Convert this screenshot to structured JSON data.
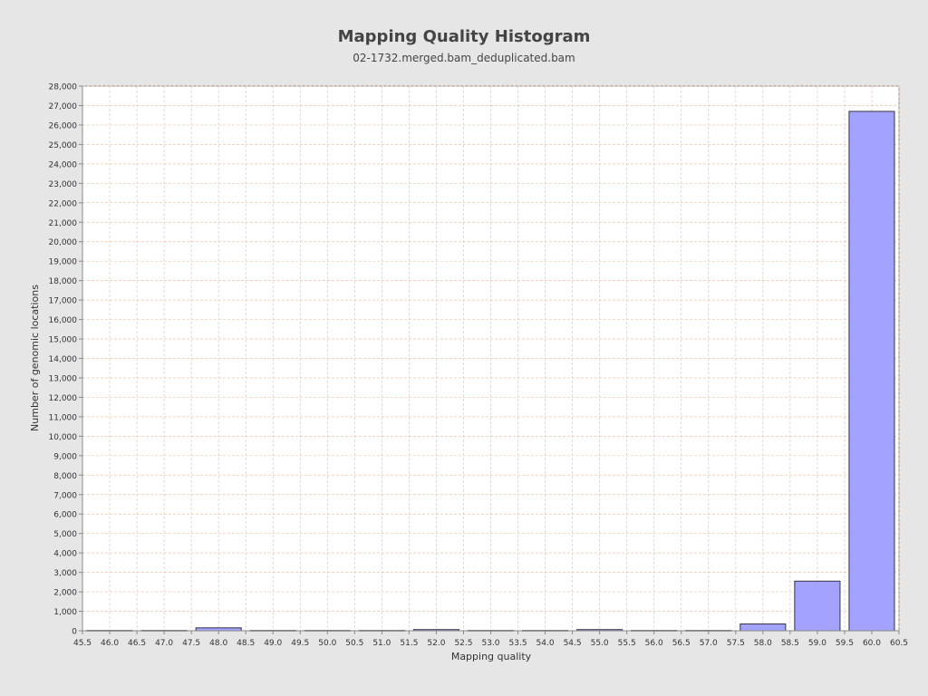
{
  "chart_data": {
    "type": "bar",
    "title": "Mapping Quality Histogram",
    "subtitle": "02-1732.merged.bam_deduplicated.bam",
    "xlabel": "Mapping quality",
    "ylabel": "Number of genomic locations",
    "xlim": [
      45.5,
      60.5
    ],
    "ylim": [
      0,
      28000
    ],
    "grid": true,
    "bar_width": 1.0,
    "x": [
      46.0,
      47.0,
      48.0,
      49.0,
      50.0,
      51.0,
      52.0,
      53.0,
      54.0,
      55.0,
      56.0,
      57.0,
      58.0,
      59.0,
      60.0
    ],
    "values": [
      15,
      15,
      150,
      15,
      15,
      15,
      60,
      15,
      15,
      60,
      15,
      15,
      350,
      2550,
      26700
    ],
    "x_ticks": [
      "45.5",
      "46.0",
      "46.5",
      "47.0",
      "47.5",
      "48.0",
      "48.5",
      "49.0",
      "49.5",
      "50.0",
      "50.5",
      "51.0",
      "51.5",
      "52.0",
      "52.5",
      "53.0",
      "53.5",
      "54.0",
      "54.5",
      "55.0",
      "55.5",
      "56.0",
      "56.5",
      "57.0",
      "57.5",
      "58.0",
      "58.5",
      "59.0",
      "59.5",
      "60.0",
      "60.5"
    ],
    "y_ticks": [
      "0",
      "1,000",
      "2,000",
      "3,000",
      "4,000",
      "5,000",
      "6,000",
      "7,000",
      "8,000",
      "9,000",
      "10,000",
      "11,000",
      "12,000",
      "13,000",
      "14,000",
      "15,000",
      "16,000",
      "17,000",
      "18,000",
      "19,000",
      "20,000",
      "21,000",
      "22,000",
      "23,000",
      "24,000",
      "25,000",
      "26,000",
      "27,000",
      "28,000"
    ],
    "colors": {
      "bar_fill": "#a3a3ff",
      "bar_stroke": "#333344",
      "grid": "#f0c4a8",
      "plot_bg": "#ffffff",
      "axis": "#888888"
    }
  }
}
